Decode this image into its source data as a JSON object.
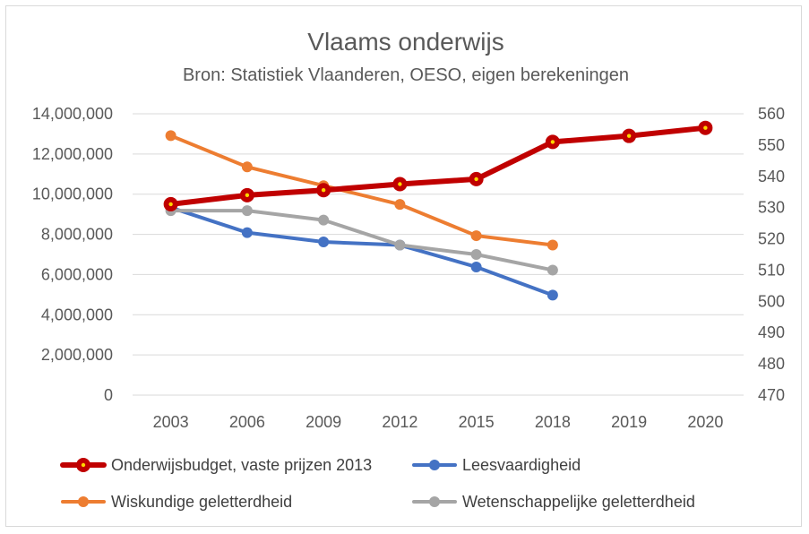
{
  "chart_data": {
    "type": "line",
    "title": "Vlaams onderwijs",
    "subtitle": "Bron: Statistiek Vlaanderen, OESO, eigen berekeningen",
    "categories": [
      "2003",
      "2006",
      "2009",
      "2012",
      "2015",
      "2018",
      "2019",
      "2020"
    ],
    "y_left": {
      "range": [
        0,
        14000000
      ],
      "ticks": [
        0,
        2000000,
        4000000,
        6000000,
        8000000,
        10000000,
        12000000,
        14000000
      ],
      "tick_labels": [
        "0",
        "2,000,000",
        "4,000,000",
        "6,000,000",
        "8,000,000",
        "10,000,000",
        "12,000,000",
        "14,000,000"
      ]
    },
    "y_right": {
      "range": [
        470,
        560
      ],
      "ticks": [
        470,
        480,
        490,
        500,
        510,
        520,
        530,
        540,
        550,
        560
      ],
      "tick_labels": [
        "470",
        "480",
        "490",
        "500",
        "510",
        "520",
        "530",
        "540",
        "550",
        "560"
      ]
    },
    "grid": true,
    "legend_position": "bottom",
    "series": [
      {
        "name": "Onderwijsbudget, vaste prijzen 2013",
        "axis": "left",
        "color": "#c00000",
        "values": [
          9500000,
          9950000,
          10200000,
          10500000,
          10750000,
          12600000,
          12900000,
          13300000
        ]
      },
      {
        "name": "Leesvaardigheid",
        "axis": "right",
        "color": "#4472c4",
        "values": [
          530,
          522,
          519,
          518,
          511,
          502,
          null,
          null
        ]
      },
      {
        "name": "Wiskundige geletterdheid",
        "axis": "right",
        "color": "#ed7d31",
        "values": [
          553,
          543,
          537,
          531,
          521,
          518,
          null,
          null
        ]
      },
      {
        "name": "Wetenschappelijke geletterdheid",
        "axis": "right",
        "color": "#a5a5a5",
        "values": [
          529,
          529,
          526,
          518,
          515,
          510,
          null,
          null
        ]
      }
    ]
  }
}
